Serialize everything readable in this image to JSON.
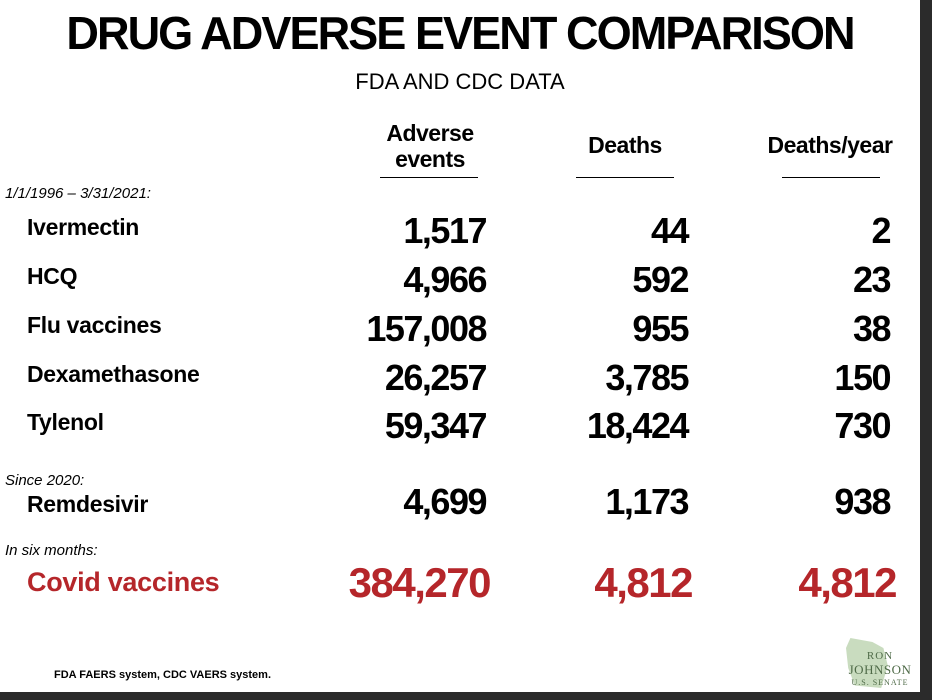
{
  "title": "DRUG ADVERSE EVENT COMPARISON",
  "subtitle": "FDA AND CDC DATA",
  "source": "FDA FAERS system, CDC VAERS system.",
  "logo": {
    "line1": "RON",
    "line2": "JOHNSON",
    "line3": "U.S. SENATE"
  },
  "chart_data": {
    "type": "table",
    "columns": [
      "Adverse events",
      "Deaths",
      "Deaths/year"
    ],
    "column_headers": [
      [
        "Adverse",
        "events"
      ],
      [
        "Deaths"
      ],
      [
        "Deaths/year"
      ]
    ],
    "groups": [
      {
        "period": "1/1/1996 – 3/31/2021:",
        "rows": [
          {
            "label": "Ivermectin",
            "values": [
              "1,517",
              "44",
              "2"
            ]
          },
          {
            "label": "HCQ",
            "values": [
              "4,966",
              "592",
              "23"
            ]
          },
          {
            "label": "Flu vaccines",
            "values": [
              "157,008",
              "955",
              "38"
            ]
          },
          {
            "label": "Dexamethasone",
            "values": [
              "26,257",
              "3,785",
              "150"
            ]
          },
          {
            "label": "Tylenol",
            "values": [
              "59,347",
              "18,424",
              "730"
            ]
          }
        ]
      },
      {
        "period": "Since 2020:",
        "rows": [
          {
            "label": "Remdesivir",
            "values": [
              "4,699",
              "1,173",
              "938"
            ]
          }
        ]
      },
      {
        "period": "In six months:",
        "rows": [
          {
            "label": "Covid vaccines",
            "values": [
              "384,270",
              "4,812",
              "4,812"
            ],
            "highlight": true
          }
        ]
      }
    ],
    "highlight_color": "#b5262a"
  }
}
